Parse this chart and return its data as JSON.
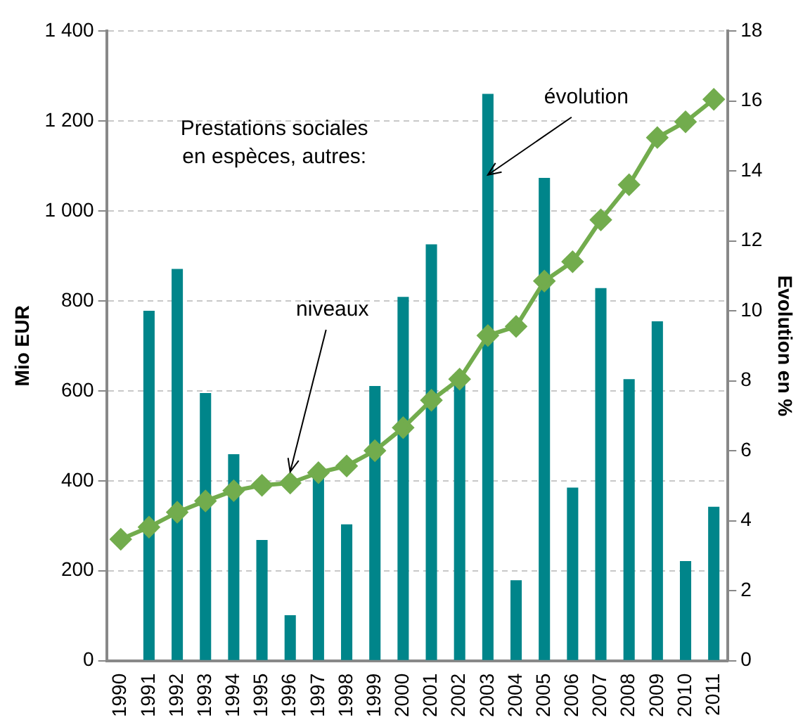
{
  "chart_data": {
    "type": "bar",
    "categories": [
      "1990",
      "1991",
      "1992",
      "1993",
      "1994",
      "1995",
      "1996",
      "1997",
      "1998",
      "1999",
      "2000",
      "2001",
      "2002",
      "2003",
      "2004",
      "2005",
      "2006",
      "2007",
      "2008",
      "2009",
      "2010",
      "2011"
    ],
    "series": [
      {
        "axis": "y2",
        "color": "#00858a",
        "values": [
          null,
          10.0,
          11.2,
          7.65,
          5.9,
          3.45,
          1.3,
          5.3,
          3.9,
          7.85,
          10.4,
          11.9,
          8.0,
          16.2,
          2.3,
          13.8,
          4.95,
          10.65,
          8.05,
          9.7,
          2.85,
          4.4
        ]
      },
      {
        "type": "line",
        "color": "#72ac4d",
        "marker": "diamond",
        "values": [
          270,
          297,
          330,
          355,
          378,
          390,
          395,
          418,
          433,
          467,
          518,
          579,
          626,
          723,
          743,
          844,
          887,
          980,
          1058,
          1163,
          1198,
          1248
        ]
      }
    ],
    "ylabel": "Mio EUR",
    "y2label": "Evolution en %",
    "ylim": [
      0,
      1400
    ],
    "yticks": [
      0,
      200,
      400,
      600,
      800,
      {
        "value": 1000,
        "label": "1 000"
      },
      {
        "value": 1200,
        "label": "1 200"
      },
      {
        "value": 1400,
        "label": "1 400"
      }
    ],
    "y2lim": [
      0,
      18
    ],
    "y2ticks": [
      0,
      2,
      4,
      6,
      8,
      10,
      12,
      14,
      16,
      18
    ],
    "grid": "y",
    "legend": false,
    "annotations": [
      "Prestations sociales en espèces, autres:",
      {
        "text": "niveaux",
        "x": "1996",
        "y": 420
      },
      {
        "text": "évolution",
        "x": "2003",
        "y": 1080
      }
    ]
  }
}
